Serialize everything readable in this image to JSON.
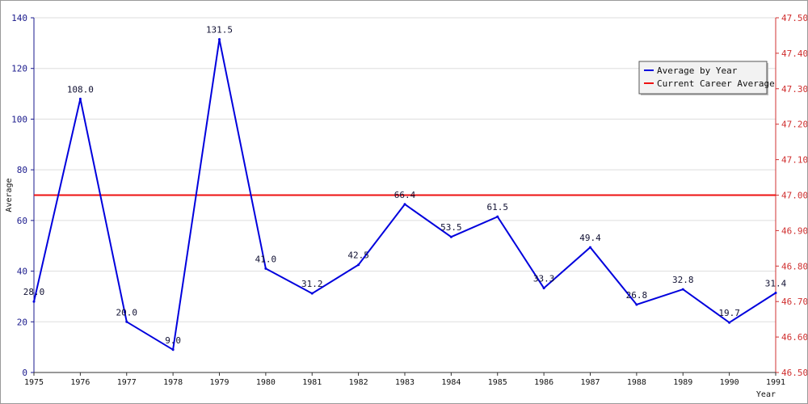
{
  "chart_data": {
    "type": "line",
    "title": "",
    "xlabel": "Year",
    "ylabel": "Average",
    "x": [
      "1975",
      "1976",
      "1977",
      "1978",
      "1979",
      "1980",
      "1981",
      "1982",
      "1983",
      "1984",
      "1985",
      "1986",
      "1987",
      "1988",
      "1989",
      "1990",
      "1991"
    ],
    "series": [
      {
        "name": "Average by Year",
        "color": "#0000dd",
        "axis": "left",
        "values": [
          28.0,
          108.0,
          20.0,
          9.0,
          131.5,
          41.0,
          31.2,
          42.5,
          66.4,
          53.5,
          61.5,
          33.3,
          49.4,
          26.8,
          32.8,
          19.7,
          31.4
        ],
        "labels": [
          "28.0",
          "108.0",
          "20.0",
          "9.0",
          "131.5",
          "41.0",
          "31.2",
          "42.5",
          "66.4",
          "53.5",
          "61.5",
          "33.3",
          "49.4",
          "26.8",
          "32.8",
          "19.7",
          "31.4"
        ]
      },
      {
        "name": "Current Career Average",
        "color": "#ee1111",
        "axis": "right",
        "value": 47.0
      }
    ],
    "ylim_left": [
      0,
      140
    ],
    "yticks_left": [
      "0",
      "20",
      "40",
      "60",
      "80",
      "100",
      "120",
      "140"
    ],
    "ylim_right": [
      46.5,
      47.5
    ],
    "yticks_right": [
      "46.50",
      "46.60",
      "46.70",
      "46.80",
      "46.90",
      "47.00",
      "47.10",
      "47.20",
      "47.30",
      "47.40",
      "47.50"
    ],
    "grid": true,
    "legend_position": "top-right"
  }
}
